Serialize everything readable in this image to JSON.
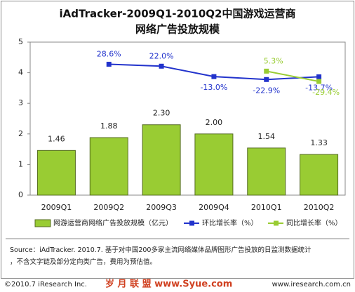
{
  "chart_data": {
    "type": "bar",
    "title": "iAdTracker-2009Q1-2010Q2中国游戏运营商",
    "subtitle": "网络广告投放规模",
    "categories": [
      "2009Q1",
      "2009Q2",
      "2009Q3",
      "2009Q4",
      "2010Q1",
      "2010Q2"
    ],
    "series": [
      {
        "name": "网游运营商网络广告投放规模（亿元）",
        "color": "#99cc33",
        "values": [
          1.46,
          1.88,
          2.3,
          2.0,
          1.54,
          1.33
        ],
        "value_labels": [
          "1.46",
          "1.88",
          "2.30",
          "2.00",
          "1.54",
          "1.33"
        ]
      },
      {
        "name": "环比增长率（%）",
        "color": "#2233cc",
        "type": "line",
        "axis": "y2",
        "values": [
          null,
          28.6,
          22.0,
          -13.0,
          -22.9,
          -13.7
        ],
        "value_labels": [
          null,
          "28.6%",
          "22.0%",
          "-13.0%",
          "-22.9%",
          "-13.7%"
        ]
      },
      {
        "name": "同比增长率（%）",
        "color": "#99cc33",
        "type": "line",
        "axis": "y2",
        "values": [
          null,
          null,
          null,
          null,
          5.3,
          -29.4
        ],
        "value_labels": [
          null,
          null,
          null,
          null,
          "5.3%",
          "-29.4%"
        ]
      }
    ],
    "ylim": [
      0,
      5
    ],
    "yticks": [
      0,
      1,
      2,
      3,
      4,
      5
    ],
    "y2lim": [
      -412,
      103
    ],
    "source": "Source：iAdTracker. 2010.7. 基于对中国200多家主流网络媒体品牌图形广告投放的日监测数据统计，不含文字链及部分定向类广告，费用为预估值。",
    "copyright": "©2010.7 iResearch Inc.",
    "watermark": "岁 月 联 盟 www.Syue.com",
    "website": "www.iresearch.com.cn"
  }
}
